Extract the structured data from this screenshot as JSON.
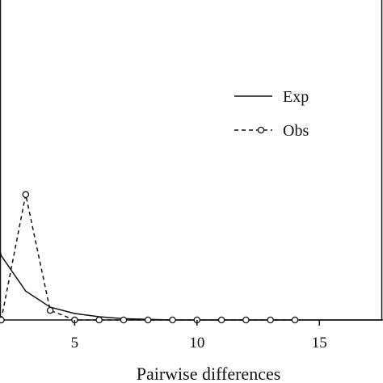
{
  "chart_data": {
    "type": "line",
    "xlabel": "Pairwise differences",
    "ylabel": "",
    "xlim": [
      1.95,
      17.6
    ],
    "ylim": [
      0,
      0.5
    ],
    "x_ticks": [
      5,
      10,
      15
    ],
    "grid": false,
    "legend_placement": "right",
    "series": [
      {
        "name": "Exp",
        "line_style": "solid",
        "markers": false,
        "color": "#111111",
        "x": [
          1.95,
          2,
          3,
          4,
          5,
          6,
          7,
          8,
          9,
          10,
          11,
          12,
          13,
          14,
          15,
          16,
          17,
          17.6
        ],
        "y": [
          0.108,
          0.1,
          0.045,
          0.02,
          0.01,
          0.005,
          0.002,
          0.001,
          0,
          0,
          0,
          0,
          0,
          0,
          0,
          0,
          0,
          0
        ]
      },
      {
        "name": "Obs",
        "line_style": "dashed",
        "markers": true,
        "color": "#111111",
        "x": [
          2,
          3,
          4,
          5,
          6,
          7,
          8,
          9,
          10,
          11,
          12,
          13,
          14
        ],
        "y": [
          0,
          0.195,
          0.015,
          0,
          0,
          0,
          0,
          0,
          0,
          0,
          0,
          0,
          0
        ]
      }
    ]
  }
}
